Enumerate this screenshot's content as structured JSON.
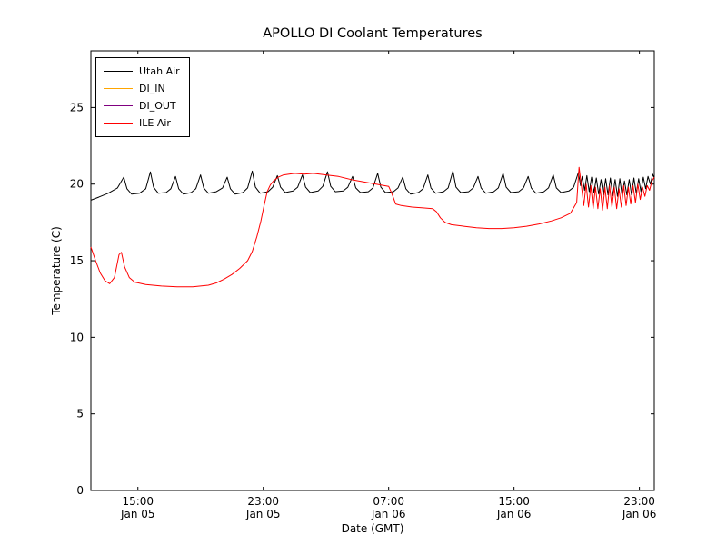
{
  "chart_data": {
    "type": "line",
    "title": "APOLLO DI Coolant Temperatures",
    "xlabel": "Date (GMT)",
    "ylabel": "Temperature (C)",
    "x_unit": "hours since Jan 05 00:00 GMT",
    "xlim": [
      12,
      47.95
    ],
    "ylim": [
      0,
      28.7
    ],
    "grid": false,
    "legend_position": "upper left",
    "xticks": [
      {
        "value": 15,
        "label": "15:00",
        "label2": "Jan 05"
      },
      {
        "value": 23,
        "label": "23:00",
        "label2": "Jan 05"
      },
      {
        "value": 31,
        "label": "07:00",
        "label2": "Jan 06"
      },
      {
        "value": 39,
        "label": "15:00",
        "label2": "Jan 06"
      },
      {
        "value": 47,
        "label": "23:00",
        "label2": "Jan 06"
      }
    ],
    "yticks": [
      0,
      5,
      10,
      15,
      20,
      25
    ],
    "series": [
      {
        "name": "Utah Air",
        "color": "#000000",
        "points": [
          [
            12.0,
            18.95
          ],
          [
            12.5,
            19.15
          ],
          [
            13.1,
            19.4
          ],
          [
            13.7,
            19.75
          ],
          [
            14.1,
            20.45
          ],
          [
            14.3,
            19.7
          ],
          [
            14.6,
            19.35
          ],
          [
            15.1,
            19.4
          ],
          [
            15.5,
            19.7
          ],
          [
            15.8,
            20.8
          ],
          [
            16.0,
            19.8
          ],
          [
            16.3,
            19.4
          ],
          [
            16.8,
            19.45
          ],
          [
            17.1,
            19.7
          ],
          [
            17.4,
            20.5
          ],
          [
            17.6,
            19.7
          ],
          [
            17.9,
            19.35
          ],
          [
            18.4,
            19.45
          ],
          [
            18.7,
            19.7
          ],
          [
            19.0,
            20.6
          ],
          [
            19.2,
            19.75
          ],
          [
            19.5,
            19.4
          ],
          [
            20.0,
            19.5
          ],
          [
            20.4,
            19.75
          ],
          [
            20.7,
            20.45
          ],
          [
            20.9,
            19.7
          ],
          [
            21.2,
            19.35
          ],
          [
            21.7,
            19.45
          ],
          [
            22.0,
            19.75
          ],
          [
            22.3,
            20.85
          ],
          [
            22.5,
            19.8
          ],
          [
            22.8,
            19.4
          ],
          [
            23.3,
            19.5
          ],
          [
            23.6,
            19.8
          ],
          [
            23.9,
            20.55
          ],
          [
            24.1,
            19.8
          ],
          [
            24.4,
            19.45
          ],
          [
            24.9,
            19.55
          ],
          [
            25.2,
            19.8
          ],
          [
            25.5,
            20.6
          ],
          [
            25.7,
            19.8
          ],
          [
            26.0,
            19.45
          ],
          [
            26.5,
            19.55
          ],
          [
            26.8,
            19.85
          ],
          [
            27.1,
            20.8
          ],
          [
            27.3,
            19.85
          ],
          [
            27.6,
            19.5
          ],
          [
            28.1,
            19.55
          ],
          [
            28.4,
            19.8
          ],
          [
            28.7,
            20.5
          ],
          [
            28.9,
            19.75
          ],
          [
            29.2,
            19.45
          ],
          [
            29.7,
            19.5
          ],
          [
            30.0,
            19.75
          ],
          [
            30.3,
            20.7
          ],
          [
            30.5,
            19.8
          ],
          [
            30.8,
            19.45
          ],
          [
            31.3,
            19.5
          ],
          [
            31.6,
            19.75
          ],
          [
            31.9,
            20.45
          ],
          [
            32.1,
            19.7
          ],
          [
            32.4,
            19.35
          ],
          [
            32.9,
            19.45
          ],
          [
            33.2,
            19.7
          ],
          [
            33.5,
            20.6
          ],
          [
            33.7,
            19.75
          ],
          [
            34.0,
            19.4
          ],
          [
            34.5,
            19.5
          ],
          [
            34.8,
            19.75
          ],
          [
            35.1,
            20.85
          ],
          [
            35.3,
            19.8
          ],
          [
            35.6,
            19.45
          ],
          [
            36.1,
            19.5
          ],
          [
            36.4,
            19.75
          ],
          [
            36.7,
            20.5
          ],
          [
            36.9,
            19.75
          ],
          [
            37.2,
            19.4
          ],
          [
            37.7,
            19.5
          ],
          [
            38.0,
            19.75
          ],
          [
            38.3,
            20.7
          ],
          [
            38.5,
            19.8
          ],
          [
            38.8,
            19.45
          ],
          [
            39.3,
            19.5
          ],
          [
            39.6,
            19.75
          ],
          [
            39.9,
            20.5
          ],
          [
            40.1,
            19.75
          ],
          [
            40.4,
            19.4
          ],
          [
            40.9,
            19.5
          ],
          [
            41.2,
            19.75
          ],
          [
            41.5,
            20.6
          ],
          [
            41.7,
            19.75
          ],
          [
            42.0,
            19.45
          ],
          [
            42.5,
            19.55
          ],
          [
            42.8,
            19.8
          ],
          [
            43.1,
            20.75
          ],
          [
            43.25,
            19.9
          ],
          [
            43.35,
            20.5
          ],
          [
            43.5,
            19.6
          ],
          [
            43.65,
            20.55
          ],
          [
            43.8,
            19.5
          ],
          [
            43.95,
            20.45
          ],
          [
            44.1,
            19.45
          ],
          [
            44.25,
            20.4
          ],
          [
            44.4,
            19.35
          ],
          [
            44.55,
            20.3
          ],
          [
            44.7,
            19.3
          ],
          [
            44.85,
            20.35
          ],
          [
            45.0,
            19.3
          ],
          [
            45.15,
            20.4
          ],
          [
            45.3,
            19.25
          ],
          [
            45.45,
            20.3
          ],
          [
            45.6,
            19.2
          ],
          [
            45.75,
            20.35
          ],
          [
            45.9,
            19.25
          ],
          [
            46.05,
            20.2
          ],
          [
            46.2,
            19.3
          ],
          [
            46.35,
            20.3
          ],
          [
            46.5,
            19.3
          ],
          [
            46.65,
            20.4
          ],
          [
            46.8,
            19.4
          ],
          [
            46.95,
            20.35
          ],
          [
            47.1,
            19.5
          ],
          [
            47.25,
            20.45
          ],
          [
            47.4,
            19.7
          ],
          [
            47.55,
            20.5
          ],
          [
            47.7,
            20.0
          ],
          [
            47.85,
            20.65
          ],
          [
            47.95,
            20.4
          ]
        ]
      },
      {
        "name": "DI_IN",
        "color": "#ffa500",
        "points": []
      },
      {
        "name": "DI_OUT",
        "color": "#800080",
        "points": []
      },
      {
        "name": "ILE Air",
        "color": "#ff0000",
        "points": [
          [
            12.0,
            15.9
          ],
          [
            12.3,
            15.0
          ],
          [
            12.6,
            14.2
          ],
          [
            12.9,
            13.7
          ],
          [
            13.2,
            13.5
          ],
          [
            13.5,
            13.9
          ],
          [
            13.8,
            15.4
          ],
          [
            13.95,
            15.55
          ],
          [
            14.15,
            14.6
          ],
          [
            14.45,
            13.9
          ],
          [
            14.8,
            13.6
          ],
          [
            15.5,
            13.45
          ],
          [
            16.5,
            13.35
          ],
          [
            17.5,
            13.3
          ],
          [
            18.5,
            13.3
          ],
          [
            19.5,
            13.4
          ],
          [
            20.0,
            13.55
          ],
          [
            20.5,
            13.8
          ],
          [
            21.0,
            14.1
          ],
          [
            21.5,
            14.5
          ],
          [
            22.0,
            15.0
          ],
          [
            22.3,
            15.6
          ],
          [
            22.6,
            16.6
          ],
          [
            22.85,
            17.6
          ],
          [
            23.05,
            18.6
          ],
          [
            23.25,
            19.5
          ],
          [
            23.45,
            19.95
          ],
          [
            23.65,
            20.2
          ],
          [
            23.95,
            20.45
          ],
          [
            24.3,
            20.6
          ],
          [
            25.0,
            20.7
          ],
          [
            25.6,
            20.65
          ],
          [
            26.2,
            20.7
          ],
          [
            27.0,
            20.6
          ],
          [
            27.8,
            20.5
          ],
          [
            28.6,
            20.3
          ],
          [
            29.4,
            20.15
          ],
          [
            30.2,
            20.0
          ],
          [
            31.0,
            19.85
          ],
          [
            31.2,
            19.4
          ],
          [
            31.45,
            18.7
          ],
          [
            31.8,
            18.6
          ],
          [
            32.5,
            18.5
          ],
          [
            33.2,
            18.45
          ],
          [
            33.8,
            18.4
          ],
          [
            34.05,
            18.2
          ],
          [
            34.3,
            17.8
          ],
          [
            34.6,
            17.5
          ],
          [
            35.0,
            17.35
          ],
          [
            35.8,
            17.25
          ],
          [
            36.6,
            17.15
          ],
          [
            37.4,
            17.1
          ],
          [
            38.2,
            17.1
          ],
          [
            39.0,
            17.15
          ],
          [
            39.8,
            17.25
          ],
          [
            40.6,
            17.4
          ],
          [
            41.4,
            17.6
          ],
          [
            42.0,
            17.8
          ],
          [
            42.6,
            18.1
          ],
          [
            43.0,
            18.8
          ],
          [
            43.15,
            21.1
          ],
          [
            43.3,
            19.9
          ],
          [
            43.45,
            18.6
          ],
          [
            43.6,
            20.0
          ],
          [
            43.75,
            18.5
          ],
          [
            43.9,
            19.9
          ],
          [
            44.05,
            18.4
          ],
          [
            44.2,
            19.8
          ],
          [
            44.35,
            18.4
          ],
          [
            44.5,
            19.7
          ],
          [
            44.65,
            18.3
          ],
          [
            44.8,
            19.8
          ],
          [
            44.95,
            18.4
          ],
          [
            45.1,
            19.9
          ],
          [
            45.25,
            18.5
          ],
          [
            45.4,
            19.8
          ],
          [
            45.55,
            18.4
          ],
          [
            45.7,
            19.7
          ],
          [
            45.85,
            18.5
          ],
          [
            46.0,
            19.9
          ],
          [
            46.15,
            18.6
          ],
          [
            46.3,
            19.8
          ],
          [
            46.45,
            18.7
          ],
          [
            46.6,
            19.9
          ],
          [
            46.75,
            18.8
          ],
          [
            46.9,
            20.0
          ],
          [
            47.05,
            19.0
          ],
          [
            47.2,
            19.8
          ],
          [
            47.35,
            19.2
          ],
          [
            47.5,
            19.9
          ],
          [
            47.65,
            19.6
          ],
          [
            47.8,
            20.2
          ],
          [
            47.95,
            20.45
          ]
        ]
      }
    ]
  }
}
